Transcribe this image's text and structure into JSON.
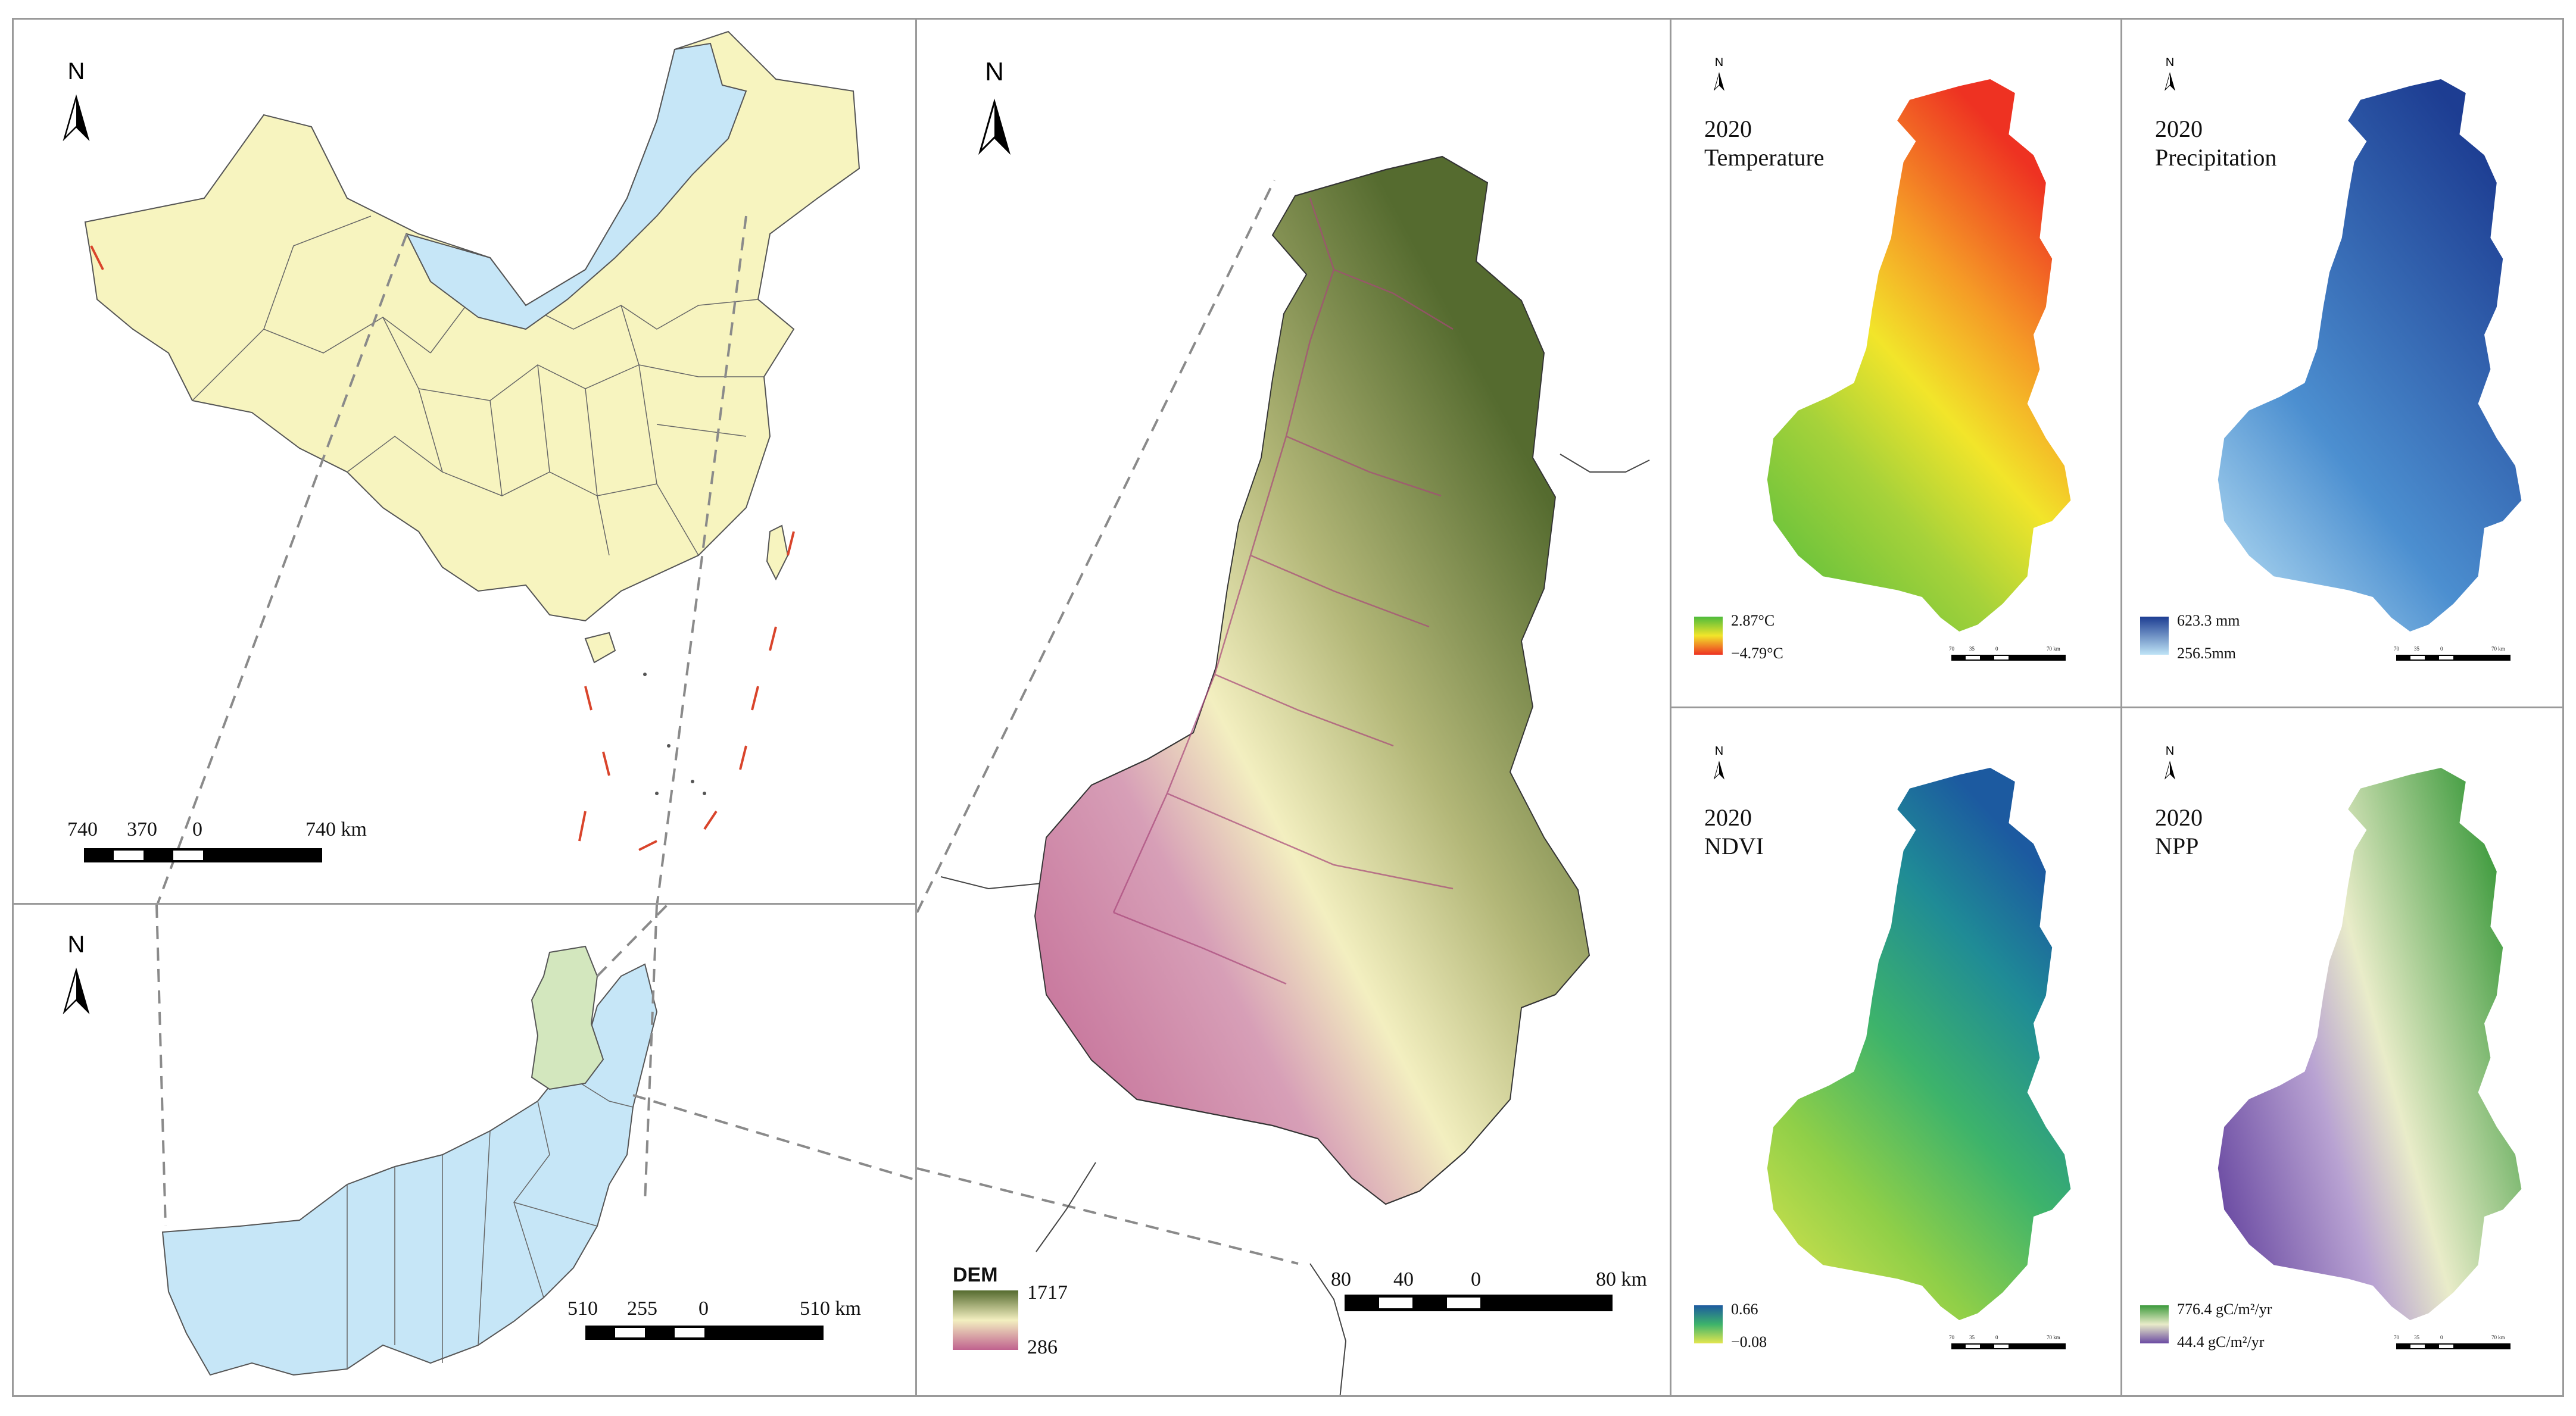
{
  "panels": {
    "china": {
      "north_label": "N",
      "scale_labels": [
        "740",
        "370",
        "0",
        "740 km"
      ]
    },
    "inner_mongolia": {
      "north_label": "N",
      "scale_labels": [
        "510",
        "255",
        "0",
        "510 km"
      ]
    },
    "dem": {
      "north_label": "N",
      "legend_title": "DEM",
      "legend_max": "1717",
      "legend_min": "286",
      "scale_labels": [
        "80",
        "40",
        "0",
        "80 km"
      ]
    },
    "temperature": {
      "north_label": "N",
      "year": "2020",
      "title": "Temperature",
      "legend_max": "2.87°C",
      "legend_min": "−4.79°C",
      "scale_labels": [
        "70",
        "35",
        "0",
        "70 km"
      ]
    },
    "precipitation": {
      "north_label": "N",
      "year": "2020",
      "title": "Precipitation",
      "legend_max": "623.3 mm",
      "legend_min": "256.5mm",
      "scale_labels": [
        "70",
        "35",
        "0",
        "70 km"
      ]
    },
    "ndvi": {
      "north_label": "N",
      "year": "2020",
      "title": "NDVI",
      "legend_max": "0.66",
      "legend_min": "−0.08",
      "scale_labels": [
        "70",
        "35",
        "0",
        "70 km"
      ]
    },
    "npp": {
      "north_label": "N",
      "year": "2020",
      "title": "NPP",
      "legend_max": "776.4 gC/m²/yr",
      "legend_min": "44.4 gC/m²/yr",
      "scale_labels": [
        "70",
        "35",
        "0",
        "70 km"
      ]
    }
  },
  "colors": {
    "china_fill": "#f7f4bf",
    "inner_mongolia_fill": "#c6e6f7",
    "study_area_fill": "#d3e7be",
    "dem_high": "#556b2f",
    "dem_mid": "#f3efc0",
    "dem_low": "#c0628f",
    "temp_high": "#ee3222",
    "temp_low": "#4dbb3c",
    "precip_high": "#1d3d92",
    "precip_low": "#bfe4f6",
    "ndvi_high": "#1c5aa0",
    "ndvi_low": "#e3e64f",
    "npp_high": "#3c9a3c",
    "npp_low": "#6a4aa2"
  },
  "icons": [
    "north-arrow-icon"
  ]
}
